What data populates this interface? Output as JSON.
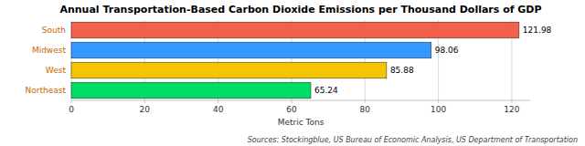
{
  "chart_data": {
    "type": "bar",
    "orientation": "horizontal",
    "title": "Annual Transportation-Based Carbon Dioxide Emissions per Thousand Dollars of GDP",
    "categories": [
      "Northeast",
      "West",
      "Midwest",
      "South"
    ],
    "values": [
      65.24,
      85.88,
      98.06,
      121.98
    ],
    "colors": [
      "#00dd66",
      "#f5c500",
      "#3399ff",
      "#f4614a"
    ],
    "xlabel": "Metric Tons",
    "xlim": [
      0,
      125
    ],
    "xticks": [
      0,
      20,
      40,
      60,
      80,
      100,
      120
    ],
    "grid": true,
    "data_labels": true,
    "annotations": [
      "Sources: Stockingblue, US Bureau of Economic Analysis, US Department of Transportation"
    ]
  }
}
